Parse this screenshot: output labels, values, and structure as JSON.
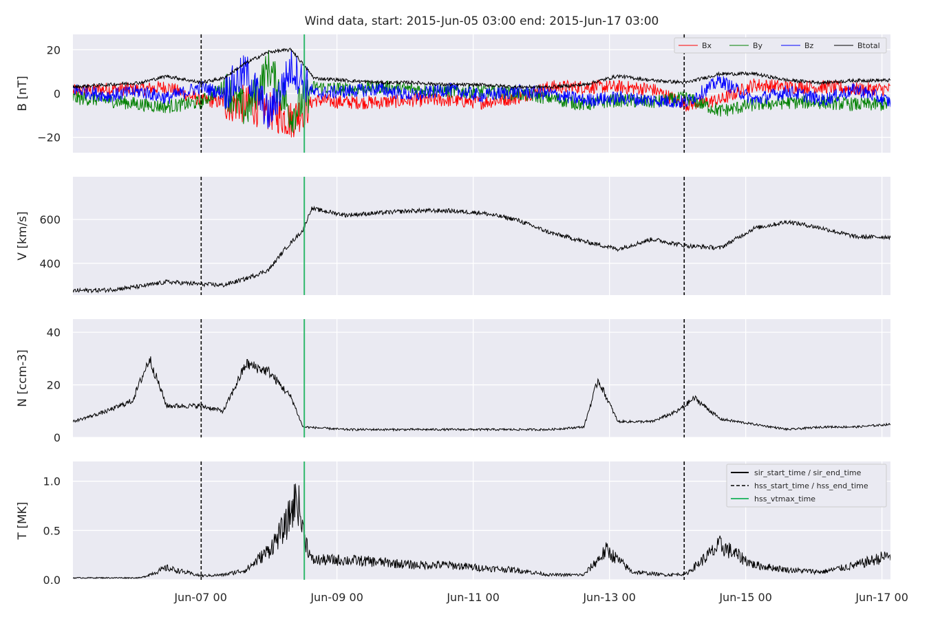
{
  "chart_data": {
    "type": "line",
    "title": "Wind data, start: 2015-Jun-05 03:00  end: 2015-Jun-17 03:00",
    "x_range": [
      "2015-06-05 03:00",
      "2015-06-17 03:00"
    ],
    "x_ticks": [
      {
        "t": "2015-06-07 00:00",
        "label": "Jun-07 00"
      },
      {
        "t": "2015-06-09 00:00",
        "label": "Jun-09 00"
      },
      {
        "t": "2015-06-11 00:00",
        "label": "Jun-11 00"
      },
      {
        "t": "2015-06-13 00:00",
        "label": "Jun-13 00"
      },
      {
        "t": "2015-06-15 00:00",
        "label": "Jun-15 00"
      },
      {
        "t": "2015-06-17 00:00",
        "label": "Jun-17 00"
      }
    ],
    "grid": true,
    "markers": {
      "hss_start_time": "2015-06-07 00:10",
      "hss_vtmax_time": "2015-06-08 12:30",
      "hss_end_time": "2015-06-14 02:20"
    },
    "marker_colors": {
      "hss": "#000000",
      "vtmax": "#2fb86b"
    },
    "panels": [
      {
        "ylabel": "B [nT]",
        "ylim": [
          -27,
          27
        ],
        "yticks": [
          -20,
          0,
          20
        ],
        "legend": "top-right",
        "series": [
          {
            "name": "Bx",
            "color": "#ff0000",
            "x": [
              "2015-06-05 03:00",
              "2015-06-05 15:00",
              "2015-06-06 03:00",
              "2015-06-06 12:00",
              "2015-06-07 00:00",
              "2015-06-07 08:00",
              "2015-06-07 16:00",
              "2015-06-08 00:00",
              "2015-06-08 08:00",
              "2015-06-08 16:00",
              "2015-06-09 03:00",
              "2015-06-09 15:00",
              "2015-06-10 03:00",
              "2015-06-10 15:00",
              "2015-06-11 03:00",
              "2015-06-11 15:00",
              "2015-06-12 03:00",
              "2015-06-12 15:00",
              "2015-06-13 03:00",
              "2015-06-13 15:00",
              "2015-06-14 03:00",
              "2015-06-14 15:00",
              "2015-06-15 03:00",
              "2015-06-15 15:00",
              "2015-06-16 03:00",
              "2015-06-16 15:00",
              "2015-06-17 03:00"
            ],
            "values": [
              1,
              2,
              2,
              3,
              -3,
              -4,
              -5,
              -8,
              -12,
              -3,
              -4,
              -4,
              -3,
              -3,
              -4,
              -2,
              3,
              3,
              3,
              2,
              -5,
              -3,
              4,
              3,
              3,
              2,
              2
            ]
          },
          {
            "name": "By",
            "color": "#008000",
            "x": [
              "2015-06-05 03:00",
              "2015-06-05 15:00",
              "2015-06-06 03:00",
              "2015-06-06 12:00",
              "2015-06-07 00:00",
              "2015-06-07 08:00",
              "2015-06-07 16:00",
              "2015-06-08 00:00",
              "2015-06-08 08:00",
              "2015-06-08 16:00",
              "2015-06-09 03:00",
              "2015-06-09 15:00",
              "2015-06-10 03:00",
              "2015-06-10 15:00",
              "2015-06-11 03:00",
              "2015-06-11 15:00",
              "2015-06-12 03:00",
              "2015-06-12 15:00",
              "2015-06-13 03:00",
              "2015-06-13 15:00",
              "2015-06-14 03:00",
              "2015-06-14 15:00",
              "2015-06-15 03:00",
              "2015-06-15 15:00",
              "2015-06-16 03:00",
              "2015-06-16 15:00",
              "2015-06-17 03:00"
            ],
            "values": [
              -2,
              -3,
              -5,
              -6,
              -4,
              3,
              -8,
              12,
              -10,
              3,
              2,
              3,
              2,
              1,
              1,
              0,
              -2,
              -5,
              -3,
              -4,
              -2,
              -8,
              -5,
              -4,
              -4,
              -5,
              -5
            ]
          },
          {
            "name": "Bz",
            "color": "#0000ff",
            "x": [
              "2015-06-05 03:00",
              "2015-06-05 15:00",
              "2015-06-06 03:00",
              "2015-06-06 12:00",
              "2015-06-07 00:00",
              "2015-06-07 08:00",
              "2015-06-07 16:00",
              "2015-06-08 00:00",
              "2015-06-08 08:00",
              "2015-06-08 16:00",
              "2015-06-09 03:00",
              "2015-06-09 15:00",
              "2015-06-10 03:00",
              "2015-06-10 15:00",
              "2015-06-11 03:00",
              "2015-06-11 15:00",
              "2015-06-12 03:00",
              "2015-06-12 15:00",
              "2015-06-13 03:00",
              "2015-06-13 15:00",
              "2015-06-14 03:00",
              "2015-06-14 15:00",
              "2015-06-15 03:00",
              "2015-06-15 15:00",
              "2015-06-16 03:00",
              "2015-06-16 15:00",
              "2015-06-17 03:00"
            ],
            "values": [
              2,
              -1,
              1,
              -2,
              3,
              0,
              10,
              -10,
              12,
              0,
              1,
              2,
              -1,
              2,
              -1,
              1,
              0,
              -3,
              -2,
              -3,
              -4,
              6,
              -3,
              1,
              -3,
              2,
              -4
            ]
          },
          {
            "name": "Btotal",
            "color": "#000000",
            "x": [
              "2015-06-05 03:00",
              "2015-06-05 15:00",
              "2015-06-06 03:00",
              "2015-06-06 12:00",
              "2015-06-07 00:00",
              "2015-06-07 08:00",
              "2015-06-07 16:00",
              "2015-06-08 00:00",
              "2015-06-08 08:00",
              "2015-06-08 16:00",
              "2015-06-09 03:00",
              "2015-06-09 15:00",
              "2015-06-10 03:00",
              "2015-06-10 15:00",
              "2015-06-11 03:00",
              "2015-06-11 15:00",
              "2015-06-12 03:00",
              "2015-06-12 15:00",
              "2015-06-13 03:00",
              "2015-06-13 15:00",
              "2015-06-14 03:00",
              "2015-06-14 15:00",
              "2015-06-15 03:00",
              "2015-06-15 15:00",
              "2015-06-16 03:00",
              "2015-06-16 15:00",
              "2015-06-17 03:00"
            ],
            "values": [
              3,
              4,
              5,
              8,
              5,
              7,
              14,
              19,
              20,
              7,
              6,
              5,
              5,
              4,
              4,
              3,
              3,
              4,
              8,
              6,
              5,
              9,
              9,
              6,
              5,
              6,
              6
            ]
          }
        ]
      },
      {
        "ylabel": "V [km/s]",
        "ylim": [
          255,
          795
        ],
        "yticks": [
          400,
          600
        ],
        "series": [
          {
            "name": "V",
            "color": "#000000",
            "x": [
              "2015-06-05 03:00",
              "2015-06-05 15:00",
              "2015-06-06 03:00",
              "2015-06-06 12:00",
              "2015-06-07 00:00",
              "2015-06-07 08:00",
              "2015-06-07 16:00",
              "2015-06-08 00:00",
              "2015-06-08 06:00",
              "2015-06-08 12:00",
              "2015-06-08 15:00",
              "2015-06-09 03:00",
              "2015-06-09 15:00",
              "2015-06-10 03:00",
              "2015-06-10 15:00",
              "2015-06-11 03:00",
              "2015-06-11 15:00",
              "2015-06-12 03:00",
              "2015-06-12 15:00",
              "2015-06-13 03:00",
              "2015-06-13 15:00",
              "2015-06-14 03:00",
              "2015-06-14 15:00",
              "2015-06-15 03:00",
              "2015-06-15 15:00",
              "2015-06-16 03:00",
              "2015-06-16 15:00",
              "2015-06-17 03:00"
            ],
            "values": [
              275,
              278,
              295,
              315,
              305,
              300,
              330,
              370,
              470,
              550,
              650,
              620,
              630,
              640,
              640,
              630,
              600,
              540,
              500,
              465,
              510,
              480,
              470,
              560,
              590,
              560,
              520,
              520
            ]
          }
        ]
      },
      {
        "ylabel": "N [ccm-3]",
        "ylim": [
          0,
          45
        ],
        "yticks": [
          0,
          20,
          40
        ],
        "series": [
          {
            "name": "N",
            "color": "#000000",
            "x": [
              "2015-06-05 03:00",
              "2015-06-05 15:00",
              "2015-06-06 00:00",
              "2015-06-06 06:00",
              "2015-06-06 12:00",
              "2015-06-07 00:00",
              "2015-06-07 08:00",
              "2015-06-07 16:00",
              "2015-06-08 00:00",
              "2015-06-08 08:00",
              "2015-06-08 12:00",
              "2015-06-09 03:00",
              "2015-06-09 15:00",
              "2015-06-10 03:00",
              "2015-06-10 15:00",
              "2015-06-11 03:00",
              "2015-06-11 15:00",
              "2015-06-12 03:00",
              "2015-06-12 15:00",
              "2015-06-12 20:00",
              "2015-06-13 03:00",
              "2015-06-13 15:00",
              "2015-06-14 00:00",
              "2015-06-14 06:00",
              "2015-06-14 15:00",
              "2015-06-15 03:00",
              "2015-06-15 15:00",
              "2015-06-16 03:00",
              "2015-06-16 15:00",
              "2015-06-17 03:00"
            ],
            "values": [
              6,
              10,
              14,
              30,
              12,
              12,
              10,
              28,
              25,
              15,
              4,
              3,
              3,
              3,
              3,
              3,
              3,
              3,
              4,
              22,
              6,
              6,
              10,
              15,
              7,
              5,
              3,
              4,
              4,
              5
            ]
          }
        ]
      },
      {
        "ylabel": "T [MK]",
        "ylim": [
          0,
          1.2
        ],
        "yticks": [
          0.0,
          0.5,
          1.0
        ],
        "legend": "top-right",
        "legend_entries": [
          {
            "label": "sir_start_time / sir_end_time",
            "style": "solid",
            "color": "#000000"
          },
          {
            "label": "hss_start_time / hss_end_time",
            "style": "dashed",
            "color": "#000000"
          },
          {
            "label": "hss_vtmax_time",
            "style": "solid",
            "color": "#2fb86b"
          }
        ],
        "series": [
          {
            "name": "T",
            "color": "#000000",
            "x": [
              "2015-06-05 03:00",
              "2015-06-05 15:00",
              "2015-06-06 03:00",
              "2015-06-06 12:00",
              "2015-06-07 00:00",
              "2015-06-07 08:00",
              "2015-06-07 16:00",
              "2015-06-08 00:00",
              "2015-06-08 06:00",
              "2015-06-08 10:00",
              "2015-06-08 12:00",
              "2015-06-08 15:00",
              "2015-06-09 03:00",
              "2015-06-09 15:00",
              "2015-06-10 03:00",
              "2015-06-10 15:00",
              "2015-06-11 03:00",
              "2015-06-11 15:00",
              "2015-06-12 03:00",
              "2015-06-12 15:00",
              "2015-06-12 23:00",
              "2015-06-13 08:00",
              "2015-06-13 20:00",
              "2015-06-14 03:00",
              "2015-06-14 15:00",
              "2015-06-15 03:00",
              "2015-06-15 15:00",
              "2015-06-16 03:00",
              "2015-06-16 15:00",
              "2015-06-17 03:00"
            ],
            "values": [
              0.02,
              0.02,
              0.02,
              0.12,
              0.04,
              0.05,
              0.1,
              0.3,
              0.55,
              0.85,
              0.5,
              0.2,
              0.2,
              0.18,
              0.15,
              0.15,
              0.12,
              0.1,
              0.05,
              0.05,
              0.3,
              0.08,
              0.05,
              0.06,
              0.35,
              0.15,
              0.1,
              0.08,
              0.15,
              0.25
            ]
          }
        ]
      }
    ]
  }
}
